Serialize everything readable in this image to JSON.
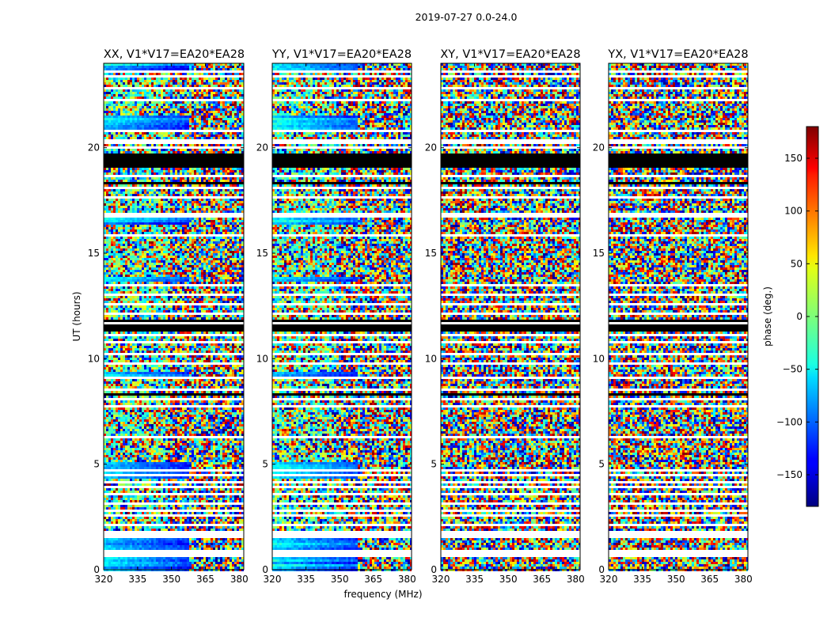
{
  "figure": {
    "suptitle": "2019-07-27 0.0-24.0"
  },
  "chart_data": {
    "type": "heatmap",
    "title": "2019-07-27 0.0-24.0",
    "xlabel": "frequency (MHz)",
    "ylabel": "UT (hours)",
    "xlim": [
      320,
      382
    ],
    "ylim": [
      0,
      24
    ],
    "x_ticks": [
      "320",
      "335",
      "350",
      "365",
      "380"
    ],
    "y_ticks": [
      "0",
      "5",
      "10",
      "15",
      "20"
    ],
    "colorbar": {
      "label": "phase (deg.)",
      "range": [
        -180,
        180
      ],
      "ticks": [
        "−150",
        "−100",
        "−50",
        "0",
        "50",
        "100",
        "150"
      ],
      "colormap": "jet"
    },
    "panels": [
      {
        "title": "XX, V1*V17=EA20*EA28",
        "phase": "coherent"
      },
      {
        "title": "YY, V1*V17=EA20*EA28",
        "phase": "coherent"
      },
      {
        "title": "XY, V1*V17=EA20*EA28",
        "phase": "noise"
      },
      {
        "title": "YX, V1*V17=EA20*EA28",
        "phase": "noise"
      }
    ],
    "flagged_ut_hours": [
      [
        0.55,
        0.95
      ],
      [
        1.45,
        1.82
      ],
      [
        2.02,
        2.12
      ],
      [
        2.5,
        2.62
      ],
      [
        2.78,
        2.86
      ],
      [
        3.1,
        3.18
      ],
      [
        3.5,
        3.6
      ],
      [
        3.85,
        3.92
      ],
      [
        4.1,
        4.16
      ],
      [
        4.44,
        4.5
      ],
      [
        4.65,
        4.71
      ],
      [
        4.98,
        5.04
      ],
      [
        5.18,
        5.24
      ],
      [
        5.5,
        5.56
      ],
      [
        5.88,
        5.94
      ],
      [
        6.25,
        6.3
      ],
      [
        6.62,
        6.68
      ],
      [
        7.0,
        7.06
      ],
      [
        7.32,
        7.38
      ],
      [
        7.72,
        7.78
      ],
      [
        8.05,
        8.1
      ],
      [
        8.48,
        8.54
      ],
      [
        9.05,
        9.1
      ],
      [
        9.75,
        9.82
      ],
      [
        10.18,
        10.24
      ],
      [
        10.7,
        10.85
      ],
      [
        11.05,
        11.15
      ],
      [
        11.6,
        11.72
      ],
      [
        12.1,
        12.16
      ],
      [
        12.55,
        12.65
      ],
      [
        13.0,
        13.06
      ],
      [
        13.45,
        13.52
      ],
      [
        13.95,
        14.0
      ],
      [
        14.4,
        14.46
      ],
      [
        14.85,
        14.9
      ],
      [
        15.3,
        15.36
      ],
      [
        15.8,
        15.86
      ],
      [
        16.2,
        16.25
      ],
      [
        16.72,
        16.86
      ],
      [
        17.2,
        17.26
      ],
      [
        17.6,
        17.66
      ],
      [
        18.05,
        18.11
      ],
      [
        18.6,
        18.66
      ],
      [
        19.0,
        19.04
      ],
      [
        19.98,
        20.08
      ],
      [
        20.2,
        20.35
      ],
      [
        20.75,
        20.82
      ],
      [
        21.5,
        21.56
      ],
      [
        22.18,
        22.32
      ],
      [
        22.8,
        22.86
      ],
      [
        23.3,
        23.4
      ],
      [
        23.55,
        23.62
      ]
    ],
    "black_ut_hours": [
      [
        19.05,
        19.72
      ],
      [
        18.25,
        18.32
      ],
      [
        17.9,
        17.95
      ],
      [
        17.45,
        17.5
      ],
      [
        15.1,
        15.15
      ],
      [
        14.55,
        14.6
      ],
      [
        12.25,
        12.32
      ],
      [
        11.25,
        11.9
      ],
      [
        10.45,
        10.5
      ],
      [
        9.6,
        9.64
      ],
      [
        8.3,
        8.34
      ]
    ]
  }
}
